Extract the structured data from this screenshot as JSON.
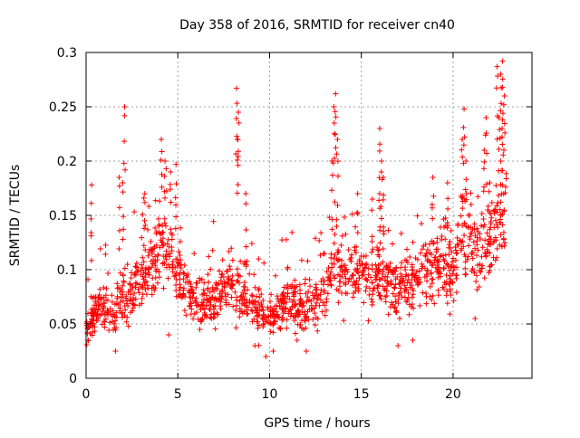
{
  "chart_data": {
    "type": "scatter",
    "title": "Day 358 of 2016, SRMTID for receiver cn40",
    "xlabel": "GPS time / hours",
    "ylabel": "SRMTID / TECUs",
    "xlim": [
      0,
      24.3
    ],
    "ylim": [
      0,
      0.3
    ],
    "x_ticks": [
      0,
      5,
      10,
      15,
      20
    ],
    "y_ticks": [
      0,
      0.05,
      0.1,
      0.15,
      0.2,
      0.25,
      0.3
    ],
    "grid": true,
    "marker": "+",
    "color": "#ff0000",
    "trend": [
      [
        0.0,
        0.045
      ],
      [
        0.5,
        0.06
      ],
      [
        1.0,
        0.065
      ],
      [
        1.5,
        0.06
      ],
      [
        2.0,
        0.075
      ],
      [
        2.5,
        0.08
      ],
      [
        3.0,
        0.09
      ],
      [
        3.5,
        0.11
      ],
      [
        4.0,
        0.12
      ],
      [
        4.5,
        0.115
      ],
      [
        5.0,
        0.1
      ],
      [
        5.5,
        0.085
      ],
      [
        6.0,
        0.075
      ],
      [
        6.5,
        0.07
      ],
      [
        7.0,
        0.075
      ],
      [
        7.5,
        0.08
      ],
      [
        8.0,
        0.09
      ],
      [
        8.5,
        0.08
      ],
      [
        9.0,
        0.07
      ],
      [
        9.5,
        0.06
      ],
      [
        10.0,
        0.055
      ],
      [
        10.5,
        0.06
      ],
      [
        11.0,
        0.07
      ],
      [
        11.5,
        0.065
      ],
      [
        12.0,
        0.065
      ],
      [
        12.5,
        0.07
      ],
      [
        13.0,
        0.085
      ],
      [
        13.5,
        0.1
      ],
      [
        14.0,
        0.105
      ],
      [
        14.5,
        0.095
      ],
      [
        15.0,
        0.1
      ],
      [
        15.5,
        0.095
      ],
      [
        16.0,
        0.09
      ],
      [
        16.5,
        0.09
      ],
      [
        17.0,
        0.085
      ],
      [
        17.5,
        0.085
      ],
      [
        18.0,
        0.09
      ],
      [
        18.5,
        0.095
      ],
      [
        19.0,
        0.1
      ],
      [
        19.5,
        0.105
      ],
      [
        20.0,
        0.1
      ],
      [
        20.5,
        0.13
      ],
      [
        21.0,
        0.125
      ],
      [
        21.5,
        0.11
      ],
      [
        22.0,
        0.13
      ],
      [
        22.5,
        0.14
      ],
      [
        22.9,
        0.15
      ]
    ],
    "bursts": [
      [
        2.1,
        0.25
      ],
      [
        4.1,
        0.22
      ],
      [
        4.3,
        0.2
      ],
      [
        4.6,
        0.19
      ],
      [
        8.2,
        0.267
      ],
      [
        8.3,
        0.245
      ],
      [
        8.25,
        0.22
      ],
      [
        13.6,
        0.262
      ],
      [
        13.5,
        0.25
      ],
      [
        13.7,
        0.22
      ],
      [
        13.4,
        0.2
      ],
      [
        16.0,
        0.23
      ],
      [
        16.1,
        0.2
      ],
      [
        16.0,
        0.17
      ],
      [
        20.6,
        0.248
      ],
      [
        20.7,
        0.2
      ],
      [
        20.5,
        0.22
      ],
      [
        21.8,
        0.24
      ],
      [
        21.7,
        0.21
      ],
      [
        22.4,
        0.287
      ],
      [
        22.7,
        0.292
      ],
      [
        22.6,
        0.28
      ],
      [
        22.8,
        0.26
      ],
      [
        22.5,
        0.24
      ],
      [
        22.7,
        0.238
      ],
      [
        22.6,
        0.2
      ],
      [
        2.0,
        0.18
      ],
      [
        1.8,
        0.185
      ],
      [
        0.3,
        0.178
      ],
      [
        16.2,
        0.185
      ],
      [
        19.7,
        0.18
      ],
      [
        18.9,
        0.185
      ],
      [
        22.0,
        0.18
      ],
      [
        4.9,
        0.197
      ],
      [
        3.2,
        0.17
      ],
      [
        8.7,
        0.17
      ],
      [
        14.8,
        0.17
      ],
      [
        15.6,
        0.165
      ]
    ],
    "lows": [
      [
        1.6,
        0.025
      ],
      [
        9.8,
        0.02
      ],
      [
        10.2,
        0.025
      ],
      [
        12.0,
        0.025
      ],
      [
        17.0,
        0.03
      ],
      [
        4.5,
        0.04
      ],
      [
        0.1,
        0.035
      ],
      [
        9.2,
        0.03
      ],
      [
        17.8,
        0.035
      ],
      [
        21.2,
        0.055
      ],
      [
        6.2,
        0.045
      ],
      [
        11.5,
        0.035
      ]
    ]
  }
}
